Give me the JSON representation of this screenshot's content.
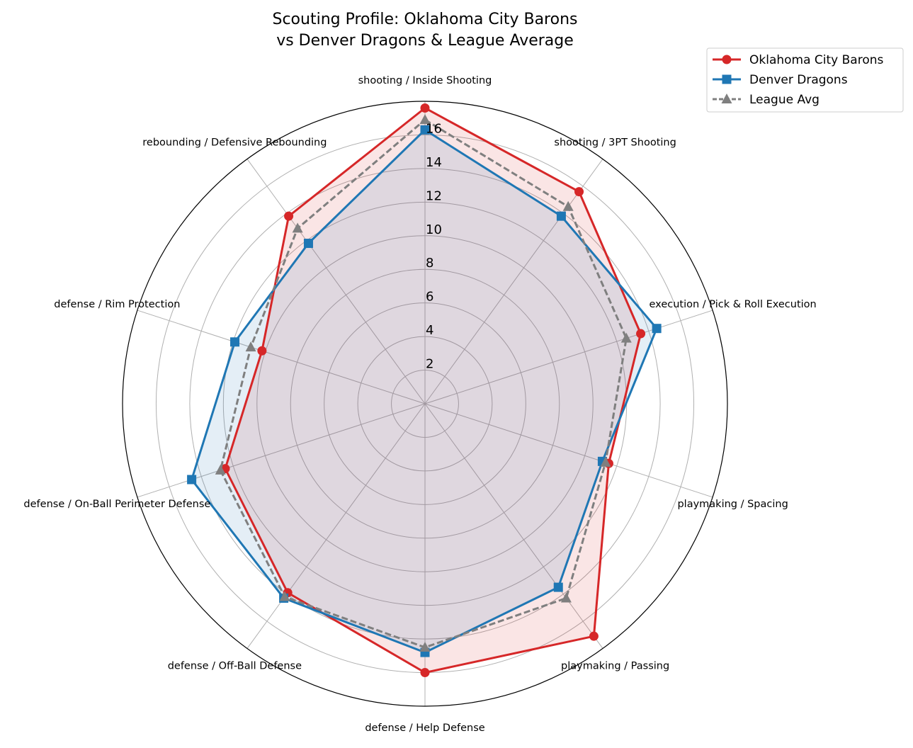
{
  "chart_data": {
    "type": "radar",
    "title": "Scouting Profile: Oklahoma City Barons\nvs Denver Dragons & League Average",
    "categories": [
      "shooting / Inside Shooting",
      "shooting / 3PT Shooting",
      "execution / Pick & Roll Execution",
      "playmaking / Spacing",
      "playmaking / Passing",
      "defense / Help Defense",
      "defense / Off-Ball Defense",
      "defense / On-Ball Perimeter Defense",
      "defense / Rim Protection",
      "rebounding / Defensive Rebounding"
    ],
    "rlim": [
      0,
      18
    ],
    "rticks": [
      "2",
      "4",
      "6",
      "8",
      "10",
      "12",
      "14",
      "16"
    ],
    "grid": true,
    "legend_position": "top-right",
    "series": [
      {
        "name": "Oklahoma City Barons",
        "color": "#d62728",
        "marker": "circle",
        "linestyle": "solid",
        "fill": true,
        "values": [
          17.6,
          15.6,
          13.5,
          11.5,
          17.1,
          16.0,
          13.9,
          12.5,
          10.2,
          13.8
        ]
      },
      {
        "name": "Denver Dragons",
        "color": "#1f77b4",
        "marker": "square",
        "linestyle": "solid",
        "fill": true,
        "values": [
          16.3,
          13.8,
          14.5,
          11.1,
          13.5,
          14.8,
          14.3,
          14.6,
          11.9,
          11.8
        ]
      },
      {
        "name": "League Avg",
        "color": "#7f7f7f",
        "marker": "triangle",
        "linestyle": "dashed",
        "fill": false,
        "values": [
          16.9,
          14.5,
          12.6,
          11.3,
          14.3,
          14.5,
          14.2,
          12.8,
          10.9,
          12.9
        ]
      }
    ]
  }
}
